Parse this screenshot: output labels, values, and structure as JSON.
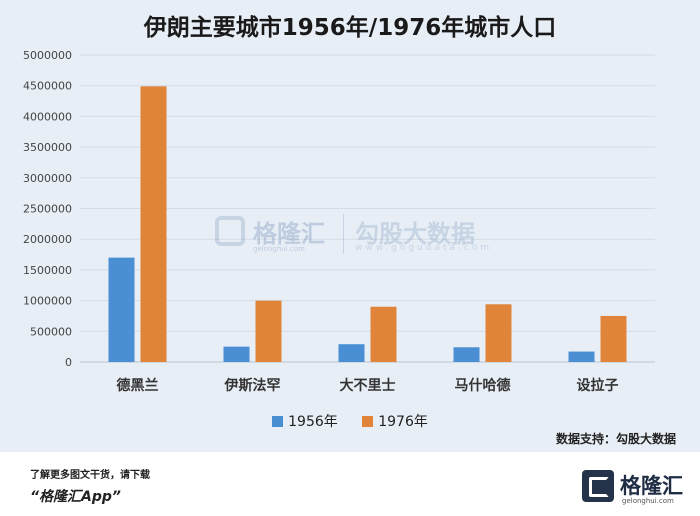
{
  "chart_data": {
    "type": "bar",
    "title": "伊朗主要城市1956年/1976年城市人口",
    "categories": [
      "德黑兰",
      "伊斯法罕",
      "大不里士",
      "马什哈德",
      "设拉子"
    ],
    "series": [
      {
        "name": "1956年",
        "color": "#4a8fd4",
        "values": [
          1700000,
          250000,
          290000,
          240000,
          170000
        ]
      },
      {
        "name": "1976年",
        "color": "#e0843a",
        "values": [
          4490000,
          1000000,
          900000,
          940000,
          750000
        ]
      }
    ],
    "ylim": [
      0,
      5000000
    ],
    "yticks": [
      0,
      500000,
      1000000,
      1500000,
      2000000,
      2500000,
      3000000,
      3500000,
      4000000,
      4500000,
      5000000
    ],
    "xlabel": "",
    "ylabel": "",
    "grid": true,
    "legend": "bottom"
  },
  "source_text": "数据支持：勾股大数据",
  "watermark": {
    "name": "格隆汇",
    "sub1": "gelonghui.com",
    "name2": "勾股大数据",
    "sub2": "www.gogudata.com"
  },
  "footer": {
    "line1": "了解更多图文干货，请下载",
    "line2": "“格隆汇App”",
    "brand": "格隆汇",
    "brand_sub": "gelonghui.com"
  }
}
